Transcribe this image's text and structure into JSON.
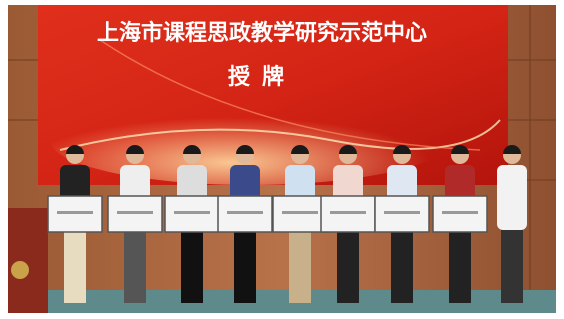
{
  "screen": {
    "title": "上海市课程思政教学研究示范中心",
    "subtitle": "授牌"
  }
}
